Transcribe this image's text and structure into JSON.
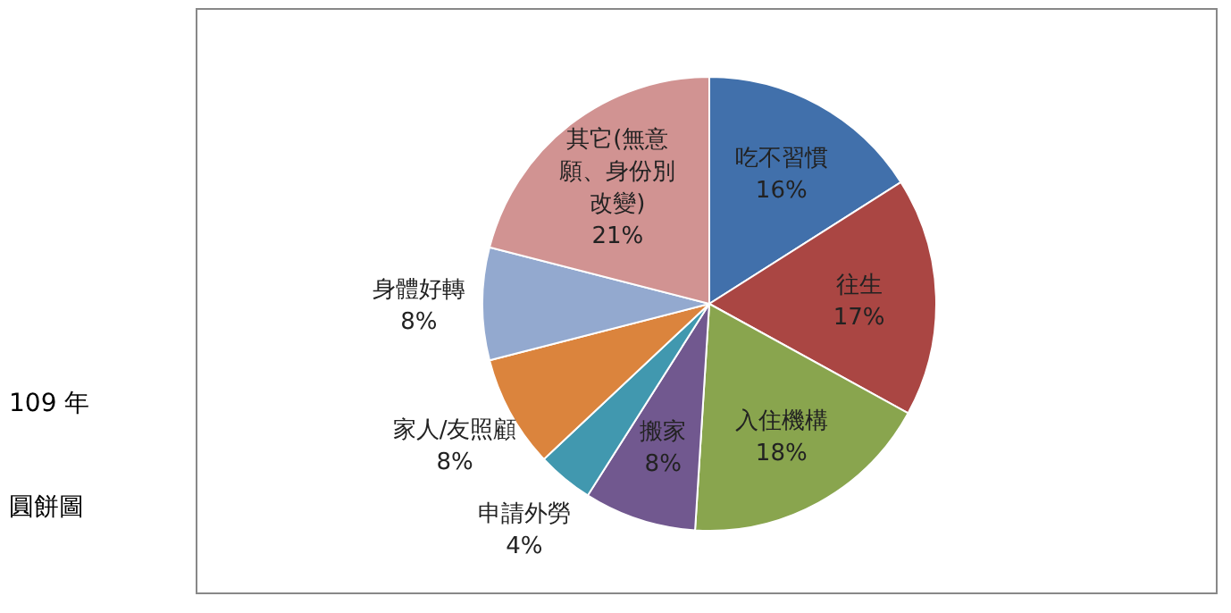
{
  "chart_data": {
    "type": "pie",
    "categories": [
      "吃不習慣",
      "往生",
      "入住機構",
      "搬家",
      "申請外勞",
      "家人/友照顧",
      "身體好轉",
      "其它(無意願、身份別改變)"
    ],
    "values": [
      16,
      17,
      18,
      8,
      4,
      8,
      8,
      21
    ],
    "colors": [
      "#4170ab",
      "#aa4643",
      "#89a54e",
      "#71588f",
      "#4198af",
      "#db843d",
      "#93a9cf",
      "#d19392"
    ],
    "value_labels": [
      "16%",
      "17%",
      "18%",
      "8%",
      "4%",
      "8%",
      "8%",
      "21%"
    ],
    "annotations": [
      "109 年",
      "圓餅圖"
    ]
  }
}
